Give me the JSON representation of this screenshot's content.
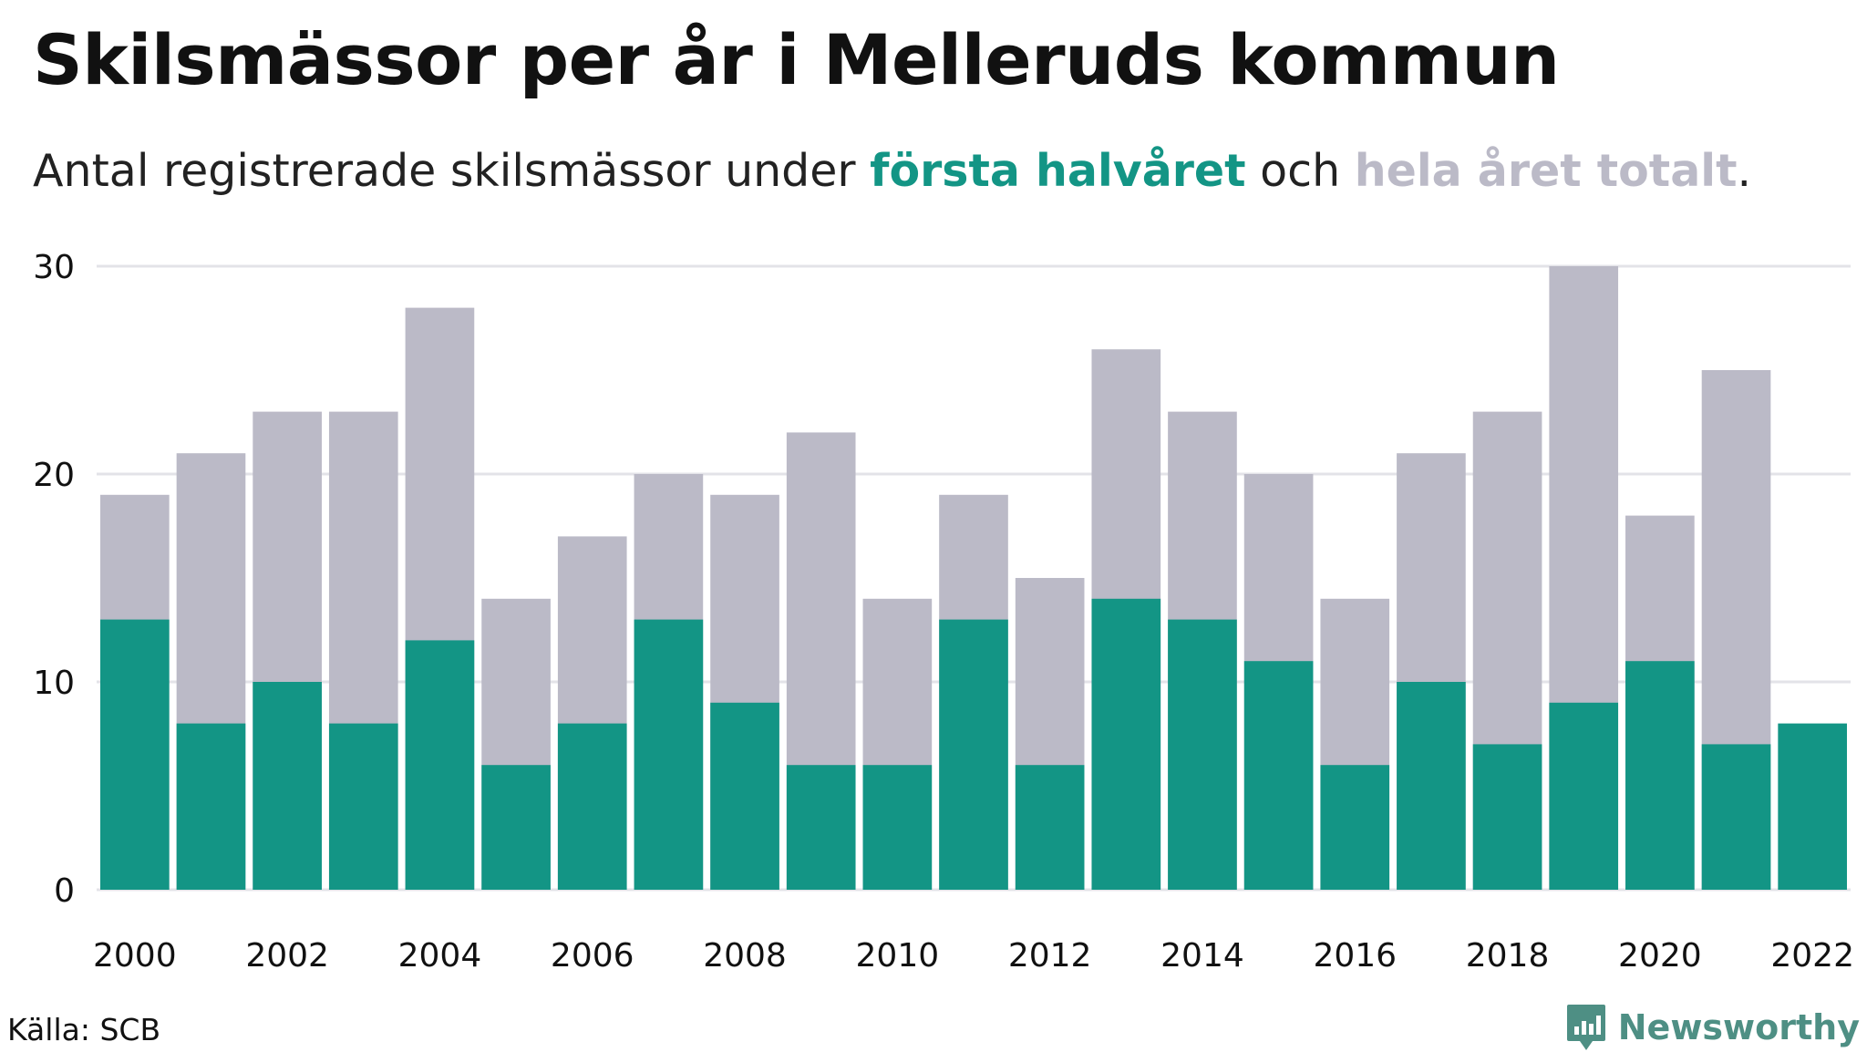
{
  "title": "Skilsmässor per år i Melleruds kommun",
  "subtitle": {
    "prefix": "Antal registrerade skilsmässor under ",
    "highlight_half": "första halvåret",
    "middle": " och ",
    "highlight_total": "hela året totalt",
    "suffix": "."
  },
  "source": "Källa: SCB",
  "brand": {
    "name": "Newsworthy",
    "icon": "newsworthy-logo-icon"
  },
  "colors": {
    "first_half": "#139585",
    "full_year": "#bbbac7",
    "gridline": "#e3e3e8"
  },
  "chart_data": {
    "type": "bar",
    "stacking": "overlay",
    "categories": [
      "2000",
      "2001",
      "2002",
      "2003",
      "2004",
      "2005",
      "2006",
      "2007",
      "2008",
      "2009",
      "2010",
      "2011",
      "2012",
      "2013",
      "2014",
      "2015",
      "2016",
      "2017",
      "2018",
      "2019",
      "2020",
      "2021",
      "2022"
    ],
    "series": [
      {
        "name": "hela året totalt",
        "color": "#bbbac7",
        "values": [
          19,
          21,
          23,
          23,
          28,
          14,
          17,
          20,
          19,
          22,
          14,
          19,
          15,
          26,
          23,
          20,
          14,
          21,
          23,
          30,
          18,
          25,
          null
        ]
      },
      {
        "name": "första halvåret",
        "color": "#139585",
        "values": [
          13,
          8,
          10,
          8,
          12,
          6,
          8,
          13,
          9,
          6,
          6,
          13,
          6,
          14,
          13,
          11,
          6,
          10,
          7,
          9,
          11,
          7,
          8
        ]
      }
    ],
    "x_tick_labels": [
      "2000",
      "2002",
      "2004",
      "2006",
      "2008",
      "2010",
      "2012",
      "2014",
      "2016",
      "2018",
      "2020",
      "2022"
    ],
    "y_ticks": [
      0,
      10,
      20,
      30
    ],
    "ylim": [
      0,
      30
    ],
    "grid": true,
    "xlabel": "",
    "ylabel": ""
  }
}
